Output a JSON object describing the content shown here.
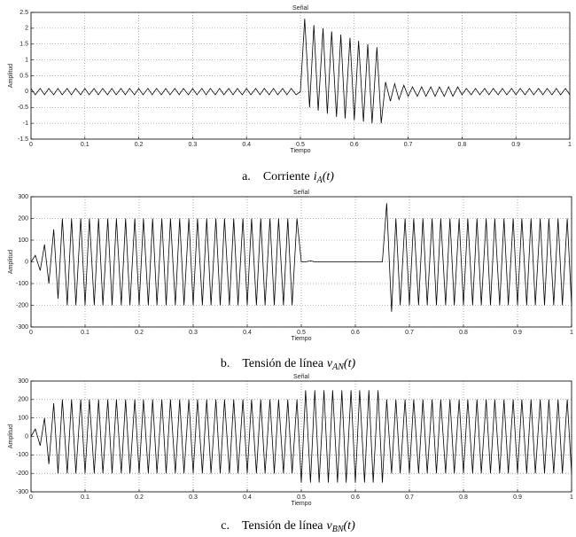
{
  "chart_data": [
    {
      "type": "line",
      "title": "Señal",
      "xlabel": "Tiempo",
      "ylabel": "Amplitud",
      "color": "#000000",
      "grid": true,
      "caption": {
        "label": "a.",
        "text": "Corriente",
        "var": "i",
        "sub": "A",
        "arg": "(t)"
      },
      "xlim": [
        0,
        1
      ],
      "xticks": [
        0,
        0.1,
        0.2,
        0.3,
        0.4,
        0.5,
        0.6,
        0.7,
        0.8,
        0.9,
        1
      ],
      "ylim": [
        -1.5,
        2.5
      ],
      "yticks": [
        -1.5,
        -1,
        -0.5,
        0,
        0.5,
        1,
        1.5,
        2,
        2.5
      ],
      "x": [
        0,
        0.008,
        0.017,
        0.025,
        0.033,
        0.042,
        0.05,
        0.058,
        0.067,
        0.075,
        0.083,
        0.092,
        0.1,
        0.108,
        0.117,
        0.125,
        0.133,
        0.142,
        0.15,
        0.158,
        0.167,
        0.175,
        0.183,
        0.192,
        0.2,
        0.208,
        0.217,
        0.225,
        0.233,
        0.242,
        0.25,
        0.258,
        0.267,
        0.275,
        0.283,
        0.292,
        0.3,
        0.308,
        0.317,
        0.325,
        0.333,
        0.342,
        0.35,
        0.358,
        0.367,
        0.375,
        0.383,
        0.392,
        0.4,
        0.408,
        0.417,
        0.425,
        0.433,
        0.442,
        0.45,
        0.458,
        0.467,
        0.475,
        0.483,
        0.492,
        0.5,
        0.508,
        0.517,
        0.525,
        0.533,
        0.542,
        0.55,
        0.558,
        0.567,
        0.575,
        0.583,
        0.592,
        0.6,
        0.608,
        0.617,
        0.625,
        0.633,
        0.642,
        0.65,
        0.658,
        0.667,
        0.675,
        0.683,
        0.692,
        0.7,
        0.708,
        0.717,
        0.725,
        0.733,
        0.742,
        0.75,
        0.758,
        0.767,
        0.775,
        0.783,
        0.792,
        0.8,
        0.808,
        0.817,
        0.825,
        0.833,
        0.842,
        0.85,
        0.858,
        0.867,
        0.875,
        0.883,
        0.892,
        0.9,
        0.908,
        0.917,
        0.925,
        0.933,
        0.942,
        0.95,
        0.958,
        0.967,
        0.975,
        0.983,
        0.992,
        1
      ],
      "values": [
        0.1,
        -0.1,
        0.1,
        -0.1,
        0.1,
        -0.1,
        0.1,
        -0.1,
        0.1,
        -0.1,
        0.1,
        -0.1,
        0.1,
        -0.1,
        0.1,
        -0.1,
        0.1,
        -0.1,
        0.1,
        -0.1,
        0.1,
        -0.1,
        0.1,
        -0.1,
        0.1,
        -0.1,
        0.1,
        -0.1,
        0.1,
        -0.1,
        0.1,
        -0.1,
        0.1,
        -0.1,
        0.1,
        -0.1,
        0.1,
        -0.1,
        0.1,
        -0.1,
        0.1,
        -0.1,
        0.1,
        -0.1,
        0.1,
        -0.1,
        0.1,
        -0.1,
        0.1,
        -0.1,
        0.1,
        -0.1,
        0.1,
        -0.1,
        0.1,
        -0.1,
        0.1,
        -0.1,
        0.1,
        -0.1,
        0,
        2.3,
        -0.5,
        2.1,
        -0.6,
        2,
        -0.7,
        1.9,
        -0.8,
        1.8,
        -0.85,
        1.7,
        -0.9,
        1.6,
        -0.95,
        1.5,
        -1,
        1.4,
        -1,
        0.3,
        -0.3,
        0.25,
        -0.25,
        0.2,
        -0.15,
        0.15,
        -0.15,
        0.15,
        -0.15,
        0.15,
        -0.15,
        0.15,
        -0.15,
        0.15,
        -0.15,
        0.15,
        -0.1,
        0.1,
        -0.1,
        0.1,
        -0.1,
        0.1,
        -0.1,
        0.1,
        -0.1,
        0.1,
        -0.1,
        0.1,
        -0.1,
        0.1,
        -0.1,
        0.1,
        -0.1,
        0.1,
        -0.1,
        0.1,
        -0.1,
        0.1,
        -0.1,
        0.1,
        -0.1
      ]
    },
    {
      "type": "line",
      "title": "Señal",
      "xlabel": "Tiempo",
      "ylabel": "Amplitud",
      "color": "#000000",
      "grid": true,
      "caption": {
        "label": "b.",
        "text": "Tensión de línea",
        "var": "v",
        "sub": "AN",
        "arg": "(t)"
      },
      "xlim": [
        0,
        1
      ],
      "xticks": [
        0,
        0.1,
        0.2,
        0.3,
        0.4,
        0.5,
        0.6,
        0.7,
        0.8,
        0.9,
        1
      ],
      "ylim": [
        -300,
        300
      ],
      "yticks": [
        -300,
        -200,
        -100,
        0,
        100,
        200,
        300
      ],
      "x": [
        0,
        0.008,
        0.017,
        0.025,
        0.033,
        0.042,
        0.05,
        0.058,
        0.067,
        0.075,
        0.083,
        0.092,
        0.1,
        0.108,
        0.117,
        0.125,
        0.133,
        0.142,
        0.15,
        0.158,
        0.167,
        0.175,
        0.183,
        0.192,
        0.2,
        0.208,
        0.217,
        0.225,
        0.233,
        0.242,
        0.25,
        0.258,
        0.267,
        0.275,
        0.283,
        0.292,
        0.3,
        0.308,
        0.317,
        0.325,
        0.333,
        0.342,
        0.35,
        0.358,
        0.367,
        0.375,
        0.383,
        0.392,
        0.4,
        0.408,
        0.417,
        0.425,
        0.433,
        0.442,
        0.45,
        0.458,
        0.467,
        0.475,
        0.483,
        0.492,
        0.5,
        0.508,
        0.517,
        0.525,
        0.533,
        0.542,
        0.55,
        0.558,
        0.567,
        0.575,
        0.583,
        0.592,
        0.6,
        0.608,
        0.617,
        0.625,
        0.633,
        0.642,
        0.65,
        0.658,
        0.667,
        0.675,
        0.683,
        0.692,
        0.7,
        0.708,
        0.717,
        0.725,
        0.733,
        0.742,
        0.75,
        0.758,
        0.767,
        0.775,
        0.783,
        0.792,
        0.8,
        0.808,
        0.817,
        0.825,
        0.833,
        0.842,
        0.85,
        0.858,
        0.867,
        0.875,
        0.883,
        0.892,
        0.9,
        0.908,
        0.917,
        0.925,
        0.933,
        0.942,
        0.95,
        0.958,
        0.967,
        0.975,
        0.983,
        0.992,
        1
      ],
      "values": [
        0,
        30,
        -40,
        80,
        -100,
        150,
        -170,
        200,
        -200,
        200,
        -200,
        200,
        -200,
        200,
        -200,
        200,
        -200,
        200,
        -200,
        200,
        -200,
        200,
        -200,
        200,
        -200,
        200,
        -200,
        200,
        -200,
        200,
        -200,
        200,
        -200,
        200,
        -200,
        200,
        -200,
        200,
        -200,
        200,
        -200,
        200,
        -200,
        200,
        -200,
        200,
        -200,
        200,
        -200,
        200,
        -200,
        200,
        -200,
        200,
        -200,
        200,
        -200,
        200,
        -200,
        200,
        0,
        0,
        5,
        0,
        0,
        0,
        0,
        0,
        0,
        0,
        0,
        0,
        0,
        0,
        0,
        0,
        0,
        0,
        0,
        270,
        -230,
        200,
        -200,
        200,
        -200,
        200,
        -200,
        200,
        -200,
        200,
        -200,
        200,
        -200,
        200,
        -200,
        200,
        -200,
        200,
        -200,
        200,
        -200,
        200,
        -200,
        200,
        -200,
        200,
        -200,
        200,
        -200,
        200,
        -200,
        200,
        -200,
        200,
        -200,
        200,
        -200,
        200,
        -200,
        200,
        -200
      ]
    },
    {
      "type": "line",
      "title": "Señal",
      "xlabel": "Tiempo",
      "ylabel": "Amplitud",
      "color": "#000000",
      "grid": true,
      "caption": {
        "label": "c.",
        "text": "Tensión de línea",
        "var": "v",
        "sub": "BN",
        "arg": "(t)"
      },
      "xlim": [
        0,
        1
      ],
      "xticks": [
        0,
        0.1,
        0.2,
        0.3,
        0.4,
        0.5,
        0.6,
        0.7,
        0.8,
        0.9,
        1
      ],
      "ylim": [
        -300,
        300
      ],
      "yticks": [
        -300,
        -200,
        -100,
        0,
        100,
        200,
        300
      ],
      "x": [
        0,
        0.008,
        0.017,
        0.025,
        0.033,
        0.042,
        0.05,
        0.058,
        0.067,
        0.075,
        0.083,
        0.092,
        0.1,
        0.108,
        0.117,
        0.125,
        0.133,
        0.142,
        0.15,
        0.158,
        0.167,
        0.175,
        0.183,
        0.192,
        0.2,
        0.208,
        0.217,
        0.225,
        0.233,
        0.242,
        0.25,
        0.258,
        0.267,
        0.275,
        0.283,
        0.292,
        0.3,
        0.308,
        0.317,
        0.325,
        0.333,
        0.342,
        0.35,
        0.358,
        0.367,
        0.375,
        0.383,
        0.392,
        0.4,
        0.408,
        0.417,
        0.425,
        0.433,
        0.442,
        0.45,
        0.458,
        0.467,
        0.475,
        0.483,
        0.492,
        0.5,
        0.508,
        0.517,
        0.525,
        0.533,
        0.542,
        0.55,
        0.558,
        0.567,
        0.575,
        0.583,
        0.592,
        0.6,
        0.608,
        0.617,
        0.625,
        0.633,
        0.642,
        0.65,
        0.658,
        0.667,
        0.675,
        0.683,
        0.692,
        0.7,
        0.708,
        0.717,
        0.725,
        0.733,
        0.742,
        0.75,
        0.758,
        0.767,
        0.775,
        0.783,
        0.792,
        0.8,
        0.808,
        0.817,
        0.825,
        0.833,
        0.842,
        0.85,
        0.858,
        0.867,
        0.875,
        0.883,
        0.892,
        0.9,
        0.908,
        0.917,
        0.925,
        0.933,
        0.942,
        0.95,
        0.958,
        0.967,
        0.975,
        0.983,
        0.992,
        1
      ],
      "values": [
        0,
        40,
        -50,
        100,
        -150,
        180,
        -200,
        200,
        -200,
        200,
        -200,
        200,
        -200,
        200,
        -200,
        200,
        -200,
        200,
        -200,
        200,
        -200,
        200,
        -200,
        200,
        -200,
        200,
        -200,
        200,
        -200,
        200,
        -200,
        200,
        -200,
        200,
        -200,
        200,
        -200,
        200,
        -200,
        200,
        -200,
        200,
        -200,
        200,
        -200,
        200,
        -200,
        200,
        -200,
        200,
        -200,
        200,
        -200,
        200,
        -200,
        200,
        -200,
        200,
        -200,
        200,
        -250,
        250,
        -250,
        250,
        -250,
        250,
        -250,
        250,
        -250,
        250,
        -250,
        250,
        -250,
        250,
        -250,
        250,
        -250,
        250,
        -250,
        200,
        -200,
        200,
        -200,
        200,
        -200,
        200,
        -200,
        200,
        -200,
        200,
        -200,
        200,
        -200,
        200,
        -200,
        200,
        -200,
        200,
        -200,
        200,
        -200,
        200,
        -200,
        200,
        -200,
        200,
        -200,
        200,
        -200,
        200,
        -200,
        200,
        -200,
        200,
        -200,
        200,
        -200,
        200,
        -200,
        200,
        -200
      ]
    }
  ]
}
